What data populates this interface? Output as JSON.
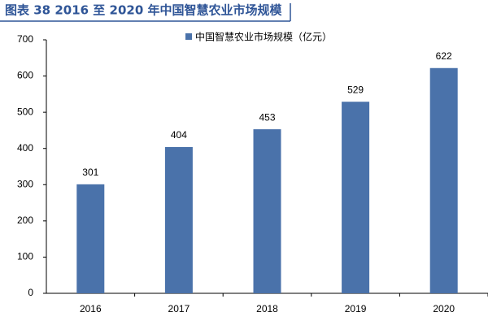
{
  "chart_data": {
    "type": "bar",
    "title": "图表 38 2016 至 2020 年中国智慧农业市场规模",
    "categories": [
      "2016",
      "2017",
      "2018",
      "2019",
      "2020"
    ],
    "series": [
      {
        "name": "中国智慧农业市场规模（亿元）",
        "color": "#4a72aa",
        "values": [
          301,
          404,
          453,
          529,
          622
        ]
      }
    ],
    "ylim": [
      0,
      700
    ],
    "yticks": [
      0,
      100,
      200,
      300,
      400,
      500,
      600,
      700
    ],
    "legend": "top",
    "data_labels": true
  }
}
